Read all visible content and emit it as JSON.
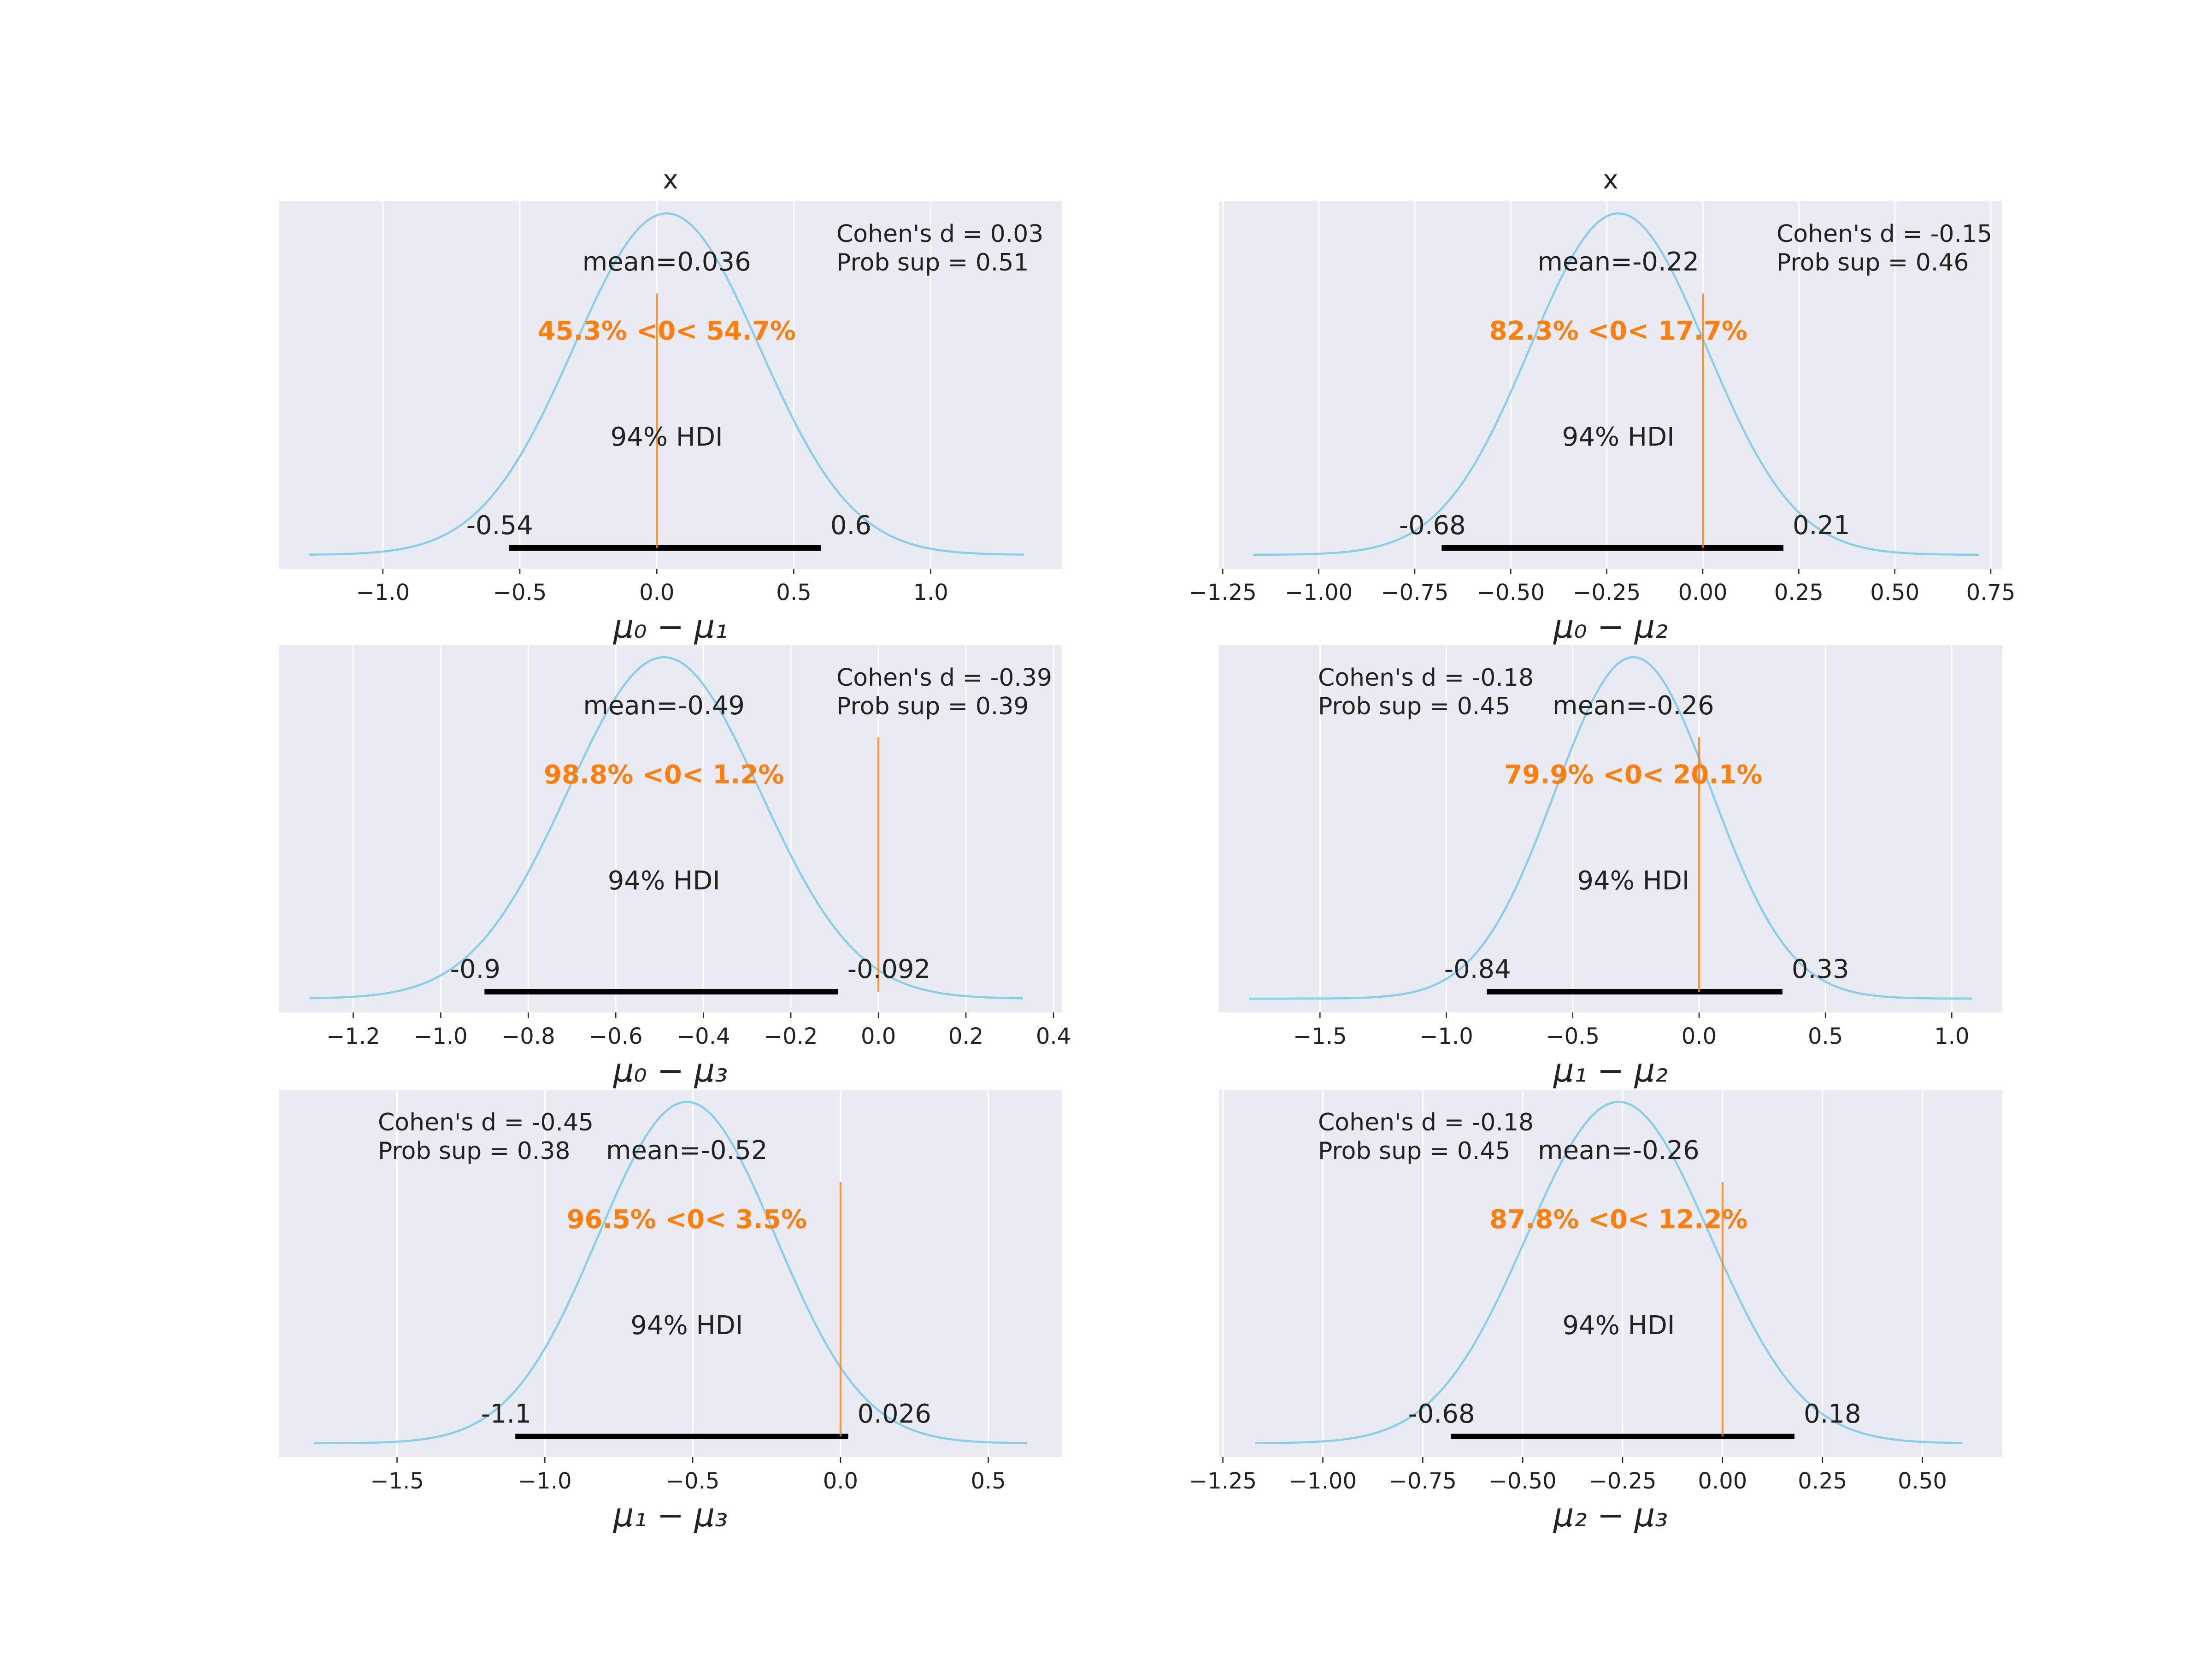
{
  "colors": {
    "background": "#eaeaf2",
    "grid": "#ffffff",
    "density": "#87ceeb",
    "ref_line": "#ff7f0e",
    "hdi_bar": "#000000",
    "text": "#222222"
  },
  "chart_data": [
    {
      "type": "line",
      "title": "x",
      "xlabel": "μ₀ − μ₁",
      "xlim": [
        -1.38,
        1.48
      ],
      "xticks": [
        -1.0,
        -0.5,
        0.0,
        0.5,
        1.0
      ],
      "xtick_labels": [
        "−1.0",
        "−0.5",
        "0.0",
        "0.5",
        "1.0"
      ],
      "mean": 0.036,
      "sd": 0.34,
      "density_range": [
        -1.27,
        1.34
      ],
      "mean_label": "mean=0.036",
      "ref_value": 0.0,
      "ref_label": "45.3% <0< 54.7%",
      "hdi_label": "94% HDI",
      "hdi": [
        -0.54,
        0.6
      ],
      "hdi_low_label": "-0.54",
      "hdi_high_label": "0.6",
      "cohen_d": "Cohen's d = 0.03",
      "prob_sup": "Prob sup = 0.51",
      "stats_position": "top-right"
    },
    {
      "type": "line",
      "title": "x",
      "xlabel": "μ₀ − μ₂",
      "xlim": [
        -1.26,
        0.78
      ],
      "xticks": [
        -1.25,
        -1.0,
        -0.75,
        -0.5,
        -0.25,
        0.0,
        0.25,
        0.5,
        0.75
      ],
      "xtick_labels": [
        "−1.25",
        "−1.00",
        "−0.75",
        "−0.50",
        "−0.25",
        "0.00",
        "0.25",
        "0.50",
        "0.75"
      ],
      "mean": -0.22,
      "sd": 0.23,
      "density_range": [
        -1.17,
        0.72
      ],
      "mean_label": "mean=-0.22",
      "ref_value": 0.0,
      "ref_label": "82.3% <0< 17.7%",
      "hdi_label": "94% HDI",
      "hdi": [
        -0.68,
        0.21
      ],
      "hdi_low_label": "-0.68",
      "hdi_high_label": "0.21",
      "cohen_d": "Cohen's d = -0.15",
      "prob_sup": "Prob sup = 0.46",
      "stats_position": "top-right"
    },
    {
      "type": "line",
      "title": "",
      "xlabel": "μ₀ − μ₃",
      "xlim": [
        -1.37,
        0.42
      ],
      "xticks": [
        -1.2,
        -1.0,
        -0.8,
        -0.6,
        -0.4,
        -0.2,
        0.0,
        0.2,
        0.4
      ],
      "xtick_labels": [
        "−1.2",
        "−1.0",
        "−0.8",
        "−0.6",
        "−0.4",
        "−0.2",
        "0.0",
        "0.2",
        "0.4"
      ],
      "mean": -0.49,
      "sd": 0.22,
      "density_range": [
        -1.3,
        0.33
      ],
      "mean_label": "mean=-0.49",
      "ref_value": 0.0,
      "ref_label": "98.8% <0< 1.2%",
      "hdi_label": "94% HDI",
      "hdi": [
        -0.9,
        -0.092
      ],
      "hdi_low_label": "-0.9",
      "hdi_high_label": "-0.092",
      "cohen_d": "Cohen's d = -0.39",
      "prob_sup": "Prob sup = 0.39",
      "stats_position": "top-right"
    },
    {
      "type": "line",
      "title": "",
      "xlabel": "μ₁ − μ₂",
      "xlim": [
        -1.9,
        1.2
      ],
      "xticks": [
        -1.5,
        -1.0,
        -0.5,
        0.0,
        0.5,
        1.0
      ],
      "xtick_labels": [
        "−1.5",
        "−1.0",
        "−0.5",
        "0.0",
        "0.5",
        "1.0"
      ],
      "mean": -0.26,
      "sd": 0.31,
      "density_range": [
        -1.78,
        1.08
      ],
      "mean_label": "mean=-0.26",
      "ref_value": 0.0,
      "ref_label": "79.9% <0< 20.1%",
      "hdi_label": "94% HDI",
      "hdi": [
        -0.84,
        0.33
      ],
      "hdi_low_label": "-0.84",
      "hdi_high_label": "0.33",
      "cohen_d": "Cohen's d = -0.18",
      "prob_sup": "Prob sup = 0.45",
      "stats_position": "top-left"
    },
    {
      "type": "line",
      "title": "",
      "xlabel": "μ₁ − μ₃",
      "xlim": [
        -1.9,
        0.75
      ],
      "xticks": [
        -1.5,
        -1.0,
        -0.5,
        0.0,
        0.5
      ],
      "xtick_labels": [
        "−1.5",
        "−1.0",
        "−0.5",
        "0.0",
        "0.5"
      ],
      "mean": -0.52,
      "sd": 0.3,
      "density_range": [
        -1.78,
        0.63
      ],
      "mean_label": "mean=-0.52",
      "ref_value": 0.0,
      "ref_label": "96.5% <0< 3.5%",
      "hdi_label": "94% HDI",
      "hdi": [
        -1.1,
        0.026
      ],
      "hdi_low_label": "-1.1",
      "hdi_high_label": "0.026",
      "cohen_d": "Cohen's d = -0.45",
      "prob_sup": "Prob sup = 0.38",
      "stats_position": "top-left"
    },
    {
      "type": "line",
      "title": "",
      "xlabel": "μ₂ − μ₃",
      "xlim": [
        -1.26,
        0.7
      ],
      "xticks": [
        -1.25,
        -1.0,
        -0.75,
        -0.5,
        -0.25,
        0.0,
        0.25,
        0.5
      ],
      "xtick_labels": [
        "−1.25",
        "−1.00",
        "−0.75",
        "−0.50",
        "−0.25",
        "0.00",
        "0.25",
        "0.50"
      ],
      "mean": -0.26,
      "sd": 0.23,
      "density_range": [
        -1.17,
        0.6
      ],
      "mean_label": "mean=-0.26",
      "ref_value": 0.0,
      "ref_label": "87.8% <0< 12.2%",
      "hdi_label": "94% HDI",
      "hdi": [
        -0.68,
        0.18
      ],
      "hdi_low_label": "-0.68",
      "hdi_high_label": "0.18",
      "cohen_d": "Cohen's d = -0.18",
      "prob_sup": "Prob sup = 0.45",
      "stats_position": "top-left"
    }
  ]
}
